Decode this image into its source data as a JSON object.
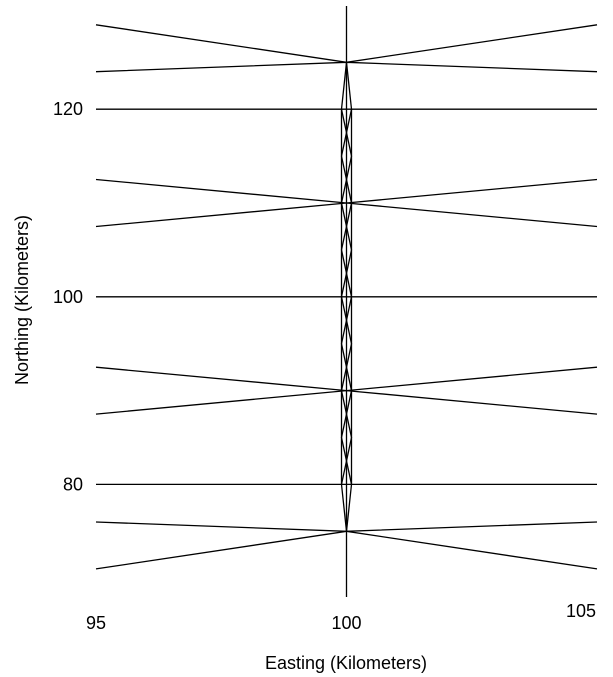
{
  "chart_data": {
    "type": "line",
    "xlabel": "Easting (Kilometers)",
    "ylabel": "Northing (Kilometers)",
    "xlim": [
      95,
      105
    ],
    "ylim": [
      68,
      131
    ],
    "x_ticks": [
      "95",
      "100",
      "105"
    ],
    "y_ticks": [
      "80",
      "100",
      "120"
    ],
    "grid": false,
    "colors": {
      "lines": "#000000",
      "background": "#ffffff"
    },
    "series": [
      {
        "x": [
          100,
          100
        ],
        "y": [
          68,
          131
        ]
      },
      {
        "x": [
          95,
          105
        ],
        "y": [
          80,
          80
        ]
      },
      {
        "x": [
          95,
          105
        ],
        "y": [
          100,
          100
        ]
      },
      {
        "x": [
          95,
          105
        ],
        "y": [
          120,
          120
        ]
      },
      {
        "x": [
          95,
          100,
          105
        ],
        "y": [
          71,
          75,
          71
        ]
      },
      {
        "x": [
          95,
          100,
          105
        ],
        "y": [
          76,
          75,
          76
        ]
      },
      {
        "x": [
          95,
          100,
          105
        ],
        "y": [
          87.5,
          90,
          87.5
        ]
      },
      {
        "x": [
          95,
          100,
          105
        ],
        "y": [
          92.5,
          90,
          92.5
        ]
      },
      {
        "x": [
          95,
          100,
          105
        ],
        "y": [
          107.5,
          110,
          107.5
        ]
      },
      {
        "x": [
          95,
          100,
          105
        ],
        "y": [
          112.5,
          110,
          112.5
        ]
      },
      {
        "x": [
          95,
          100,
          105
        ],
        "y": [
          124,
          125,
          124
        ]
      },
      {
        "x": [
          95,
          100,
          105
        ],
        "y": [
          129,
          125,
          129
        ]
      },
      {
        "x": [
          100,
          99.9,
          99.9,
          100,
          100.1,
          100.1,
          100
        ],
        "y": [
          75,
          80,
          120,
          125,
          120,
          80,
          75
        ]
      },
      {
        "x": [
          99.9,
          100.1,
          99.9,
          100.1,
          99.9,
          100.1,
          99.9,
          100.1,
          99.9
        ],
        "y": [
          80,
          85,
          90,
          95,
          100,
          105,
          110,
          115,
          120
        ]
      },
      {
        "x": [
          100.1,
          99.9,
          100.1,
          99.9,
          100.1,
          99.9,
          100.1,
          99.9,
          100.1
        ],
        "y": [
          80,
          85,
          90,
          95,
          100,
          105,
          110,
          115,
          120
        ]
      }
    ]
  }
}
